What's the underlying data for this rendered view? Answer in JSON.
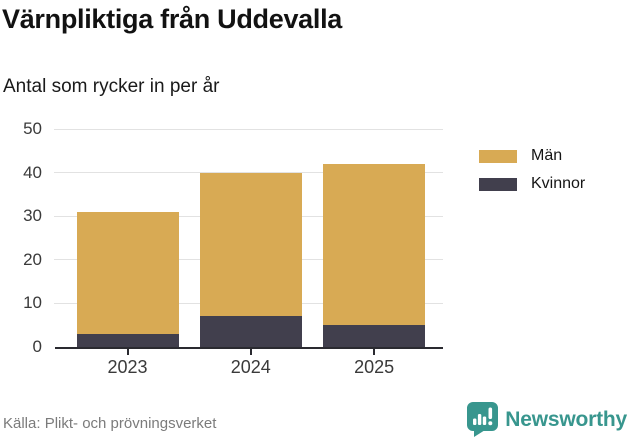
{
  "title": "Värnpliktiga från Uddevalla",
  "subtitle": "Antal som rycker in per år",
  "source": "Källa: Plikt- och prövningsverket",
  "brand": {
    "name": "Newsworthy",
    "color": "#38968e",
    "icon": "bar-chart-speech-bubble-icon"
  },
  "chart_data": {
    "type": "bar",
    "stacked": true,
    "title": "Värnpliktiga från Uddevalla",
    "subtitle": "Antal som rycker in per år",
    "categories": [
      "2023",
      "2024",
      "2025"
    ],
    "series": [
      {
        "name": "Kvinnor",
        "color": "#413f4d",
        "values": [
          3,
          7,
          5
        ]
      },
      {
        "name": "Män",
        "color": "#d8aa54",
        "values": [
          28,
          33,
          37
        ]
      }
    ],
    "totals": [
      31,
      40,
      42
    ],
    "xlabel": "",
    "ylabel": "",
    "ylim": [
      0,
      50
    ],
    "yticks": [
      0,
      10,
      20,
      30,
      40,
      50
    ],
    "grid": "horizontal",
    "gridline_color": "#e2e2e2",
    "axis_color": "#2a2a30",
    "legend": [
      "Män",
      "Kvinnor"
    ],
    "legend_position": "right"
  }
}
